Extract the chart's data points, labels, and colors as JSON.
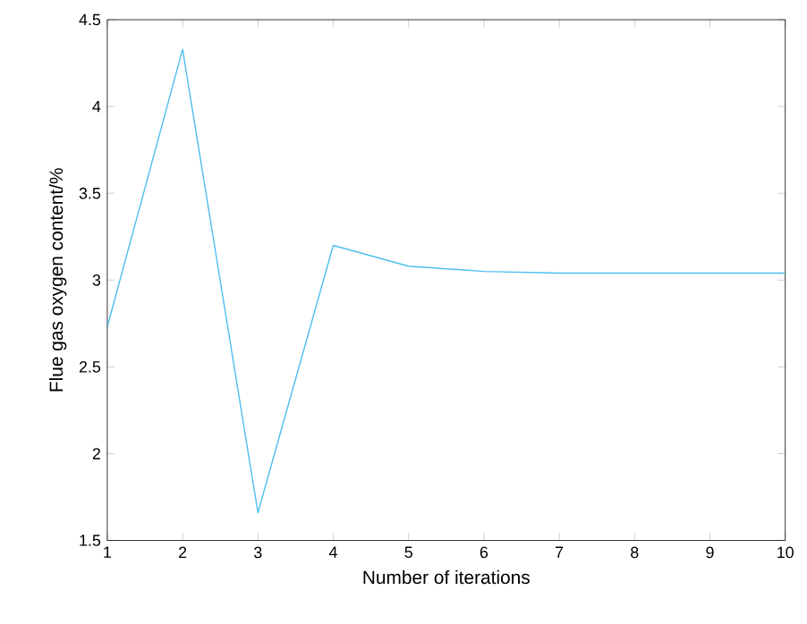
{
  "chart_data": {
    "type": "line",
    "xlabel": "Number of iterations",
    "ylabel": "Flue gas oxygen content/%",
    "x": [
      1,
      2,
      3,
      4,
      5,
      6,
      7,
      8,
      9,
      10
    ],
    "series": [
      {
        "color": "#4dbeee",
        "values": [
          2.73,
          4.33,
          1.66,
          3.2,
          3.08,
          3.05,
          3.04,
          3.04,
          3.04,
          3.04
        ]
      }
    ],
    "xlim": [
      1,
      10
    ],
    "ylim": [
      1.5,
      4.5
    ],
    "xticks": [
      1,
      2,
      3,
      4,
      5,
      6,
      7,
      8,
      9,
      10
    ],
    "yticks": [
      1.5,
      2,
      2.5,
      3,
      3.5,
      4,
      4.5
    ],
    "grid": false,
    "marker": "none",
    "line_style": "solid"
  }
}
